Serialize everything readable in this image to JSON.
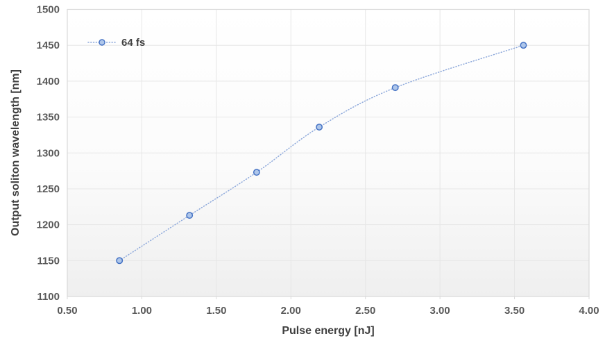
{
  "chart_data": {
    "type": "scatter",
    "title": "",
    "xlabel": "Pulse energy [nJ]",
    "ylabel": "Output soliton wavelength [nm]",
    "xlim": [
      0.5,
      4.0
    ],
    "ylim": [
      1100,
      1500
    ],
    "x_ticks": [
      {
        "value": 0.5,
        "label": "0.50"
      },
      {
        "value": 1.0,
        "label": "1.00"
      },
      {
        "value": 1.5,
        "label": "1.50"
      },
      {
        "value": 2.0,
        "label": "2.00"
      },
      {
        "value": 2.5,
        "label": "2.50"
      },
      {
        "value": 3.0,
        "label": "3.00"
      },
      {
        "value": 3.5,
        "label": "3.50"
      },
      {
        "value": 4.0,
        "label": "4.00"
      }
    ],
    "y_ticks": [
      {
        "value": 1100,
        "label": "1100"
      },
      {
        "value": 1150,
        "label": "1150"
      },
      {
        "value": 1200,
        "label": "1200"
      },
      {
        "value": 1250,
        "label": "1250"
      },
      {
        "value": 1300,
        "label": "1300"
      },
      {
        "value": 1350,
        "label": "1350"
      },
      {
        "value": 1400,
        "label": "1400"
      },
      {
        "value": 1450,
        "label": "1450"
      },
      {
        "value": 1500,
        "label": "1500"
      }
    ],
    "grid": true,
    "legend": {
      "position": "top-left",
      "entries": [
        {
          "label": "64 fs"
        }
      ]
    },
    "series": [
      {
        "name": "64 fs",
        "line_style": "dotted",
        "smooth": true,
        "marker": "circle",
        "points": [
          {
            "x": 0.85,
            "y": 1150
          },
          {
            "x": 1.32,
            "y": 1213
          },
          {
            "x": 1.77,
            "y": 1273
          },
          {
            "x": 2.19,
            "y": 1336
          },
          {
            "x": 2.7,
            "y": 1391
          },
          {
            "x": 3.56,
            "y": 1450
          }
        ]
      }
    ]
  },
  "colors": {
    "line": "#8ea9db",
    "marker_border": "#4472c4",
    "marker_fill": "#aec6ea",
    "gridline": "#e6e6e6",
    "plot_border": "#d9d9d9",
    "tick_mark": "#d9d9d9",
    "tick_label": "#595959",
    "axis_title": "#404040",
    "plot_bg_top": "#ffffff",
    "plot_bg_mid": "#fbfbfb",
    "plot_bg_bottom": "#efefef",
    "page_bg": "#ffffff"
  }
}
